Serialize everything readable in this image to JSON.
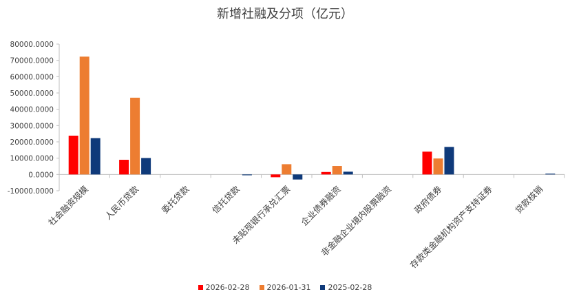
{
  "chart_data": {
    "type": "bar",
    "title": "新增社融及分项（亿元）",
    "categories": [
      "社会融资规模",
      "人民币贷款",
      "委托贷款",
      "信托贷款",
      "未贴现银行承兑汇票",
      "企业债券融资",
      "非金融企业境内股票融资",
      "政府债券",
      "存款类金融机构资产支持证券",
      "贷款核销"
    ],
    "series": [
      {
        "name": "2026-02-28",
        "color": "#ff0000",
        "values": [
          23800,
          9000,
          0,
          0,
          -1700,
          1500,
          0,
          14000,
          0,
          0
        ]
      },
      {
        "name": "2026-01-31",
        "color": "#ed7d31",
        "values": [
          72300,
          47100,
          0,
          0,
          6300,
          5200,
          0,
          9800,
          0,
          0
        ]
      },
      {
        "name": "2025-02-28",
        "color": "#0f3a7a",
        "values": [
          22300,
          10100,
          0,
          -500,
          -3100,
          1700,
          0,
          16900,
          0,
          500
        ]
      }
    ],
    "ylim": [
      -10000,
      80000
    ],
    "yticks": [
      "-10000.0000",
      "0.0000",
      "10000.0000",
      "20000.0000",
      "30000.0000",
      "40000.0000",
      "50000.0000",
      "60000.0000",
      "70000.0000",
      "80000.0000"
    ],
    "ytick_values": [
      -10000,
      0,
      10000,
      20000,
      30000,
      40000,
      50000,
      60000,
      70000,
      80000
    ],
    "legend_position": "bottom",
    "grid": false
  }
}
